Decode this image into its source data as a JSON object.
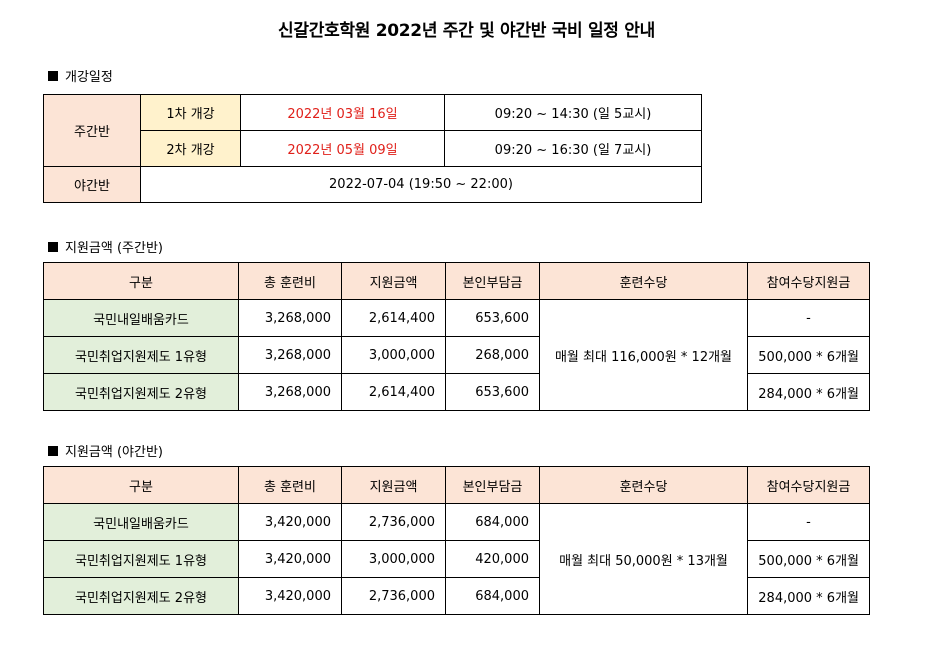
{
  "title": "신갈간호학원 2022년 주간 및 야간반 국비 일정 안내",
  "schedule": {
    "heading": "개강일정",
    "day_label": "주간반",
    "rows": [
      {
        "term": "1차 개강",
        "date": "2022년 03월 16일",
        "time": "09:20 ~ 14:30 (일 5교시)"
      },
      {
        "term": "2차 개강",
        "date": "2022년 05월 09일",
        "time": "09:20 ~ 16:30 (일 7교시)"
      }
    ],
    "night_label": "야간반",
    "night_value": "2022-07-04 (19:50 ~ 22:00)"
  },
  "day_fees": {
    "heading": "지원금액 (주간반)",
    "headers": [
      "구분",
      "총 훈련비",
      "지원금액",
      "본인부담금",
      "훈련수당",
      "참여수당지원금"
    ],
    "allowance": "매월 최대 116,000원 * 12개월",
    "rows": [
      {
        "type": "국민내일배움카드",
        "total": "3,268,000",
        "support": "2,614,400",
        "self": "653,600",
        "participation": "-"
      },
      {
        "type": "국민취업지원제도 1유형",
        "total": "3,268,000",
        "support": "3,000,000",
        "self": "268,000",
        "participation": "500,000 * 6개월"
      },
      {
        "type": "국민취업지원제도 2유형",
        "total": "3,268,000",
        "support": "2,614,400",
        "self": "653,600",
        "participation": "284,000 * 6개월"
      }
    ]
  },
  "night_fees": {
    "heading": "지원금액 (야간반)",
    "headers": [
      "구분",
      "총 훈련비",
      "지원금액",
      "본인부담금",
      "훈련수당",
      "참여수당지원금"
    ],
    "allowance": "매월 최대 50,000원 * 13개월",
    "rows": [
      {
        "type": "국민내일배움카드",
        "total": "3,420,000",
        "support": "2,736,000",
        "self": "684,000",
        "participation": "-"
      },
      {
        "type": "국민취업지원제도 1유형",
        "total": "3,420,000",
        "support": "3,000,000",
        "self": "420,000",
        "participation": "500,000 * 6개월"
      },
      {
        "type": "국민취업지원제도 2유형",
        "total": "3,420,000",
        "support": "2,736,000",
        "self": "684,000",
        "participation": "284,000 * 6개월"
      }
    ]
  }
}
